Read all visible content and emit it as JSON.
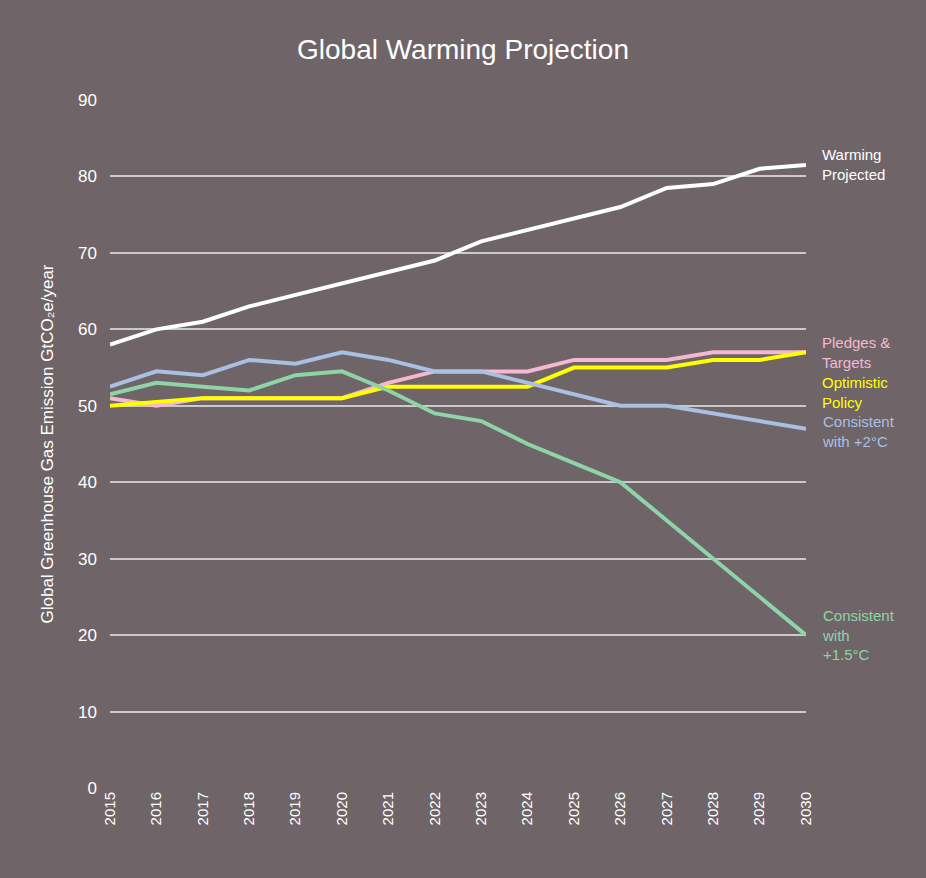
{
  "chart_data": {
    "type": "line",
    "title": "Global Warming Projection",
    "y_label": "Global Greenhouse Gas Emission GtCO₂e/year",
    "x": [
      2015,
      2016,
      2017,
      2018,
      2019,
      2020,
      2021,
      2022,
      2023,
      2024,
      2025,
      2026,
      2027,
      2028,
      2029,
      2030
    ],
    "xlim": [
      2015,
      2030
    ],
    "xticks": [
      2015,
      2016,
      2017,
      2018,
      2019,
      2020,
      2021,
      2022,
      2023,
      2024,
      2025,
      2026,
      2027,
      2028,
      2029,
      2030
    ],
    "ylim": [
      0,
      90
    ],
    "yticks": [
      0,
      10,
      20,
      30,
      40,
      50,
      60,
      70,
      80,
      90
    ],
    "grid": true,
    "series": [
      {
        "name": "Warming Projected",
        "color": "#ffffff",
        "values": [
          58,
          60,
          61,
          63,
          64.5,
          66,
          67.5,
          69,
          71.5,
          73,
          74.5,
          76,
          78.5,
          79,
          81,
          81.5
        ]
      },
      {
        "name": "Pledges & Targets",
        "color": "#f4b8d0",
        "values": [
          51,
          50,
          51,
          51,
          51,
          51,
          53,
          54.5,
          54.5,
          54.5,
          56,
          56,
          56,
          57,
          57,
          57
        ]
      },
      {
        "name": "Optimistic Policy",
        "color": "#ffff00",
        "values": [
          50,
          50.5,
          51,
          51,
          51,
          51,
          52.5,
          52.5,
          52.5,
          52.5,
          55,
          55,
          55,
          56,
          56,
          57
        ]
      },
      {
        "name": "Consistent with +2°C",
        "color": "#a9bfe3",
        "values": [
          52.5,
          54.5,
          54,
          56,
          55.5,
          57,
          56,
          54.5,
          54.5,
          53,
          51.5,
          50,
          50,
          49,
          48,
          47
        ]
      },
      {
        "name": "Consistent with +1.5°C",
        "color": "#8fd3a8",
        "values": [
          51.5,
          53,
          52.5,
          52,
          54,
          54.5,
          52,
          49,
          48,
          45,
          42.5,
          40,
          35,
          30,
          25,
          20
        ]
      }
    ]
  }
}
